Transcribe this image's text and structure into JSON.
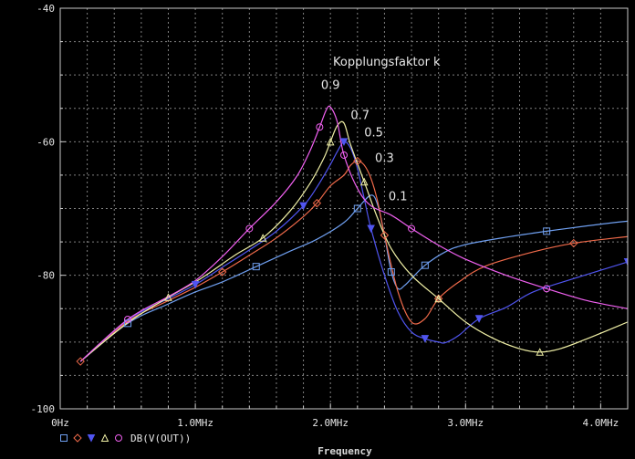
{
  "chart_data": {
    "type": "line",
    "xlabel": "Frequency",
    "xlim": [
      0,
      4.2
    ],
    "ylim": [
      -100,
      -40
    ],
    "xtick_values": [
      0,
      1,
      2,
      3,
      4
    ],
    "xtick_labels": [
      "0Hz",
      "1.0MHz",
      "2.0MHz",
      "3.0MHz",
      "4.0MHz"
    ],
    "ytick_values": [
      -40,
      -60,
      -80,
      -100
    ],
    "ytick_labels": [
      "-40",
      "-60",
      "-80",
      "-100"
    ],
    "grid": true,
    "background": "#000000",
    "annotation_title": "Kopplungsfaktor k",
    "series": [
      {
        "name": "0.1",
        "color": "#6f9ff0",
        "marker": "square",
        "label_at": [
          2.43,
          -68.8
        ],
        "x": [
          0.15,
          0.5,
          0.8,
          1.0,
          1.2,
          1.45,
          1.7,
          1.9,
          2.1,
          2.2,
          2.3,
          2.35,
          2.4,
          2.45,
          2.5,
          2.55,
          2.6,
          2.7,
          2.85,
          3.0,
          3.3,
          3.6,
          3.9,
          4.1,
          4.2
        ],
        "y": [
          -92.9,
          -87.2,
          -84.3,
          -82.5,
          -81.0,
          -78.7,
          -76.4,
          -74.6,
          -72.1,
          -70.0,
          -68.0,
          -69.5,
          -74.0,
          -79.5,
          -82.0,
          -81.5,
          -80.5,
          -78.5,
          -76.5,
          -75.4,
          -74.3,
          -73.4,
          -72.6,
          -72.1,
          -71.9
        ]
      },
      {
        "name": "0.3",
        "color": "#f06a4a",
        "marker": "diamond",
        "label_at": [
          2.33,
          -63.0
        ],
        "x": [
          0.15,
          0.5,
          0.8,
          1.0,
          1.2,
          1.4,
          1.6,
          1.8,
          1.9,
          2.0,
          2.1,
          2.15,
          2.2,
          2.25,
          2.3,
          2.35,
          2.4,
          2.5,
          2.6,
          2.7,
          2.8,
          2.95,
          3.15,
          3.5,
          3.8,
          4.2
        ],
        "y": [
          -92.9,
          -86.9,
          -83.8,
          -81.8,
          -79.5,
          -77.0,
          -74.4,
          -71.2,
          -69.2,
          -66.6,
          -65.0,
          -63.5,
          -62.9,
          -63.5,
          -65.5,
          -69.0,
          -74.0,
          -82.5,
          -87.0,
          -86.5,
          -83.5,
          -81.0,
          -78.6,
          -76.5,
          -75.2,
          -74.2
        ]
      },
      {
        "name": "0.5",
        "color": "#5055f0",
        "marker": "triangle-down",
        "label_at": [
          2.25,
          -59.2
        ],
        "x": [
          0.15,
          0.5,
          0.8,
          1.0,
          1.2,
          1.4,
          1.6,
          1.8,
          1.9,
          2.0,
          2.05,
          2.1,
          2.15,
          2.2,
          2.25,
          2.3,
          2.4,
          2.5,
          2.6,
          2.7,
          2.8,
          2.85,
          2.95,
          3.1,
          3.3,
          3.5,
          3.8,
          4.2
        ],
        "y": [
          -92.9,
          -86.7,
          -83.5,
          -81.4,
          -78.8,
          -76.2,
          -73.4,
          -69.6,
          -66.8,
          -63.4,
          -61.5,
          -60.0,
          -61.0,
          -64.0,
          -68.5,
          -73.0,
          -80.0,
          -85.5,
          -88.5,
          -89.5,
          -90.0,
          -90.1,
          -89.0,
          -86.5,
          -84.8,
          -82.5,
          -80.5,
          -78.0
        ]
      },
      {
        "name": "0.7",
        "color": "#f0f0a6",
        "marker": "triangle-up",
        "label_at": [
          2.15,
          -56.6
        ],
        "x": [
          0.15,
          0.5,
          0.8,
          1.0,
          1.1,
          1.3,
          1.5,
          1.7,
          1.85,
          1.95,
          2.0,
          2.05,
          2.1,
          2.15,
          2.25,
          2.35,
          2.45,
          2.6,
          2.8,
          3.0,
          3.2,
          3.4,
          3.55,
          3.7,
          3.9,
          4.2
        ],
        "y": [
          -92.9,
          -87.1,
          -83.3,
          -81.0,
          -79.7,
          -76.9,
          -74.4,
          -70.4,
          -66.2,
          -62.5,
          -60.0,
          -57.6,
          -57.2,
          -60.5,
          -66.0,
          -71.5,
          -76.0,
          -80.0,
          -83.5,
          -87.0,
          -89.4,
          -91.0,
          -91.5,
          -91.0,
          -89.5,
          -87.0
        ]
      },
      {
        "name": "0.9",
        "color": "#f060f0",
        "marker": "circle",
        "label_at": [
          1.93,
          -52.1
        ],
        "x": [
          0.15,
          0.5,
          0.8,
          1.0,
          1.2,
          1.4,
          1.6,
          1.75,
          1.85,
          1.92,
          1.97,
          2.0,
          2.05,
          2.1,
          2.2,
          2.3,
          2.45,
          2.6,
          2.8,
          3.0,
          3.3,
          3.6,
          3.9,
          4.2
        ],
        "y": [
          -92.9,
          -86.6,
          -83.2,
          -80.8,
          -77.2,
          -73.0,
          -69.0,
          -65.2,
          -61.3,
          -57.8,
          -55.2,
          -54.8,
          -57.0,
          -62.0,
          -67.0,
          -69.6,
          -71.0,
          -73.0,
          -75.5,
          -77.6,
          -80.0,
          -82.0,
          -83.8,
          -85.0
        ]
      }
    ],
    "legend": {
      "placement": "bottom-left",
      "text": "DB(V(OUT))"
    }
  }
}
